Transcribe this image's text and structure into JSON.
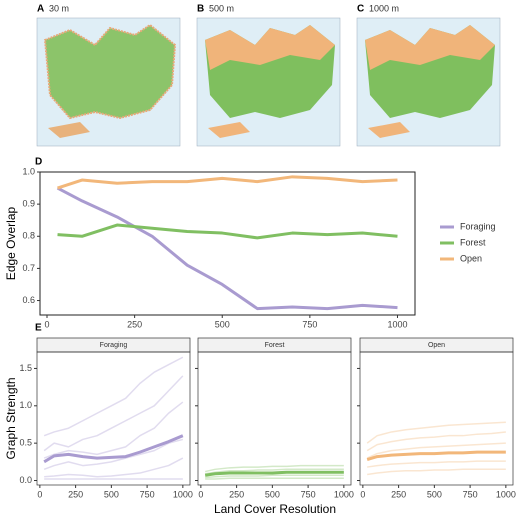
{
  "maps": [
    {
      "letter": "A",
      "label": "30 m"
    },
    {
      "letter": "B",
      "label": "500 m"
    },
    {
      "letter": "C",
      "label": "1000 m"
    }
  ],
  "chart_data": [
    {
      "type": "line",
      "panel": "D",
      "ylabel": "Edge Overlap",
      "x": [
        30,
        100,
        200,
        300,
        400,
        500,
        600,
        700,
        800,
        900,
        1000
      ],
      "series": [
        {
          "name": "Foraging",
          "color": "#a99bd0",
          "values": [
            0.95,
            0.91,
            0.86,
            0.8,
            0.71,
            0.65,
            0.575,
            0.58,
            0.575,
            0.585,
            0.578
          ]
        },
        {
          "name": "Forest",
          "color": "#80bf62",
          "values": [
            0.805,
            0.8,
            0.835,
            0.825,
            0.815,
            0.81,
            0.795,
            0.81,
            0.805,
            0.81,
            0.8
          ]
        },
        {
          "name": "Open",
          "color": "#f2b77a",
          "values": [
            0.95,
            0.975,
            0.965,
            0.97,
            0.97,
            0.98,
            0.97,
            0.985,
            0.98,
            0.97,
            0.975
          ]
        }
      ],
      "xlim": [
        -20,
        1050
      ],
      "ylim": [
        0.555,
        1.0
      ],
      "xticks": [
        0,
        250,
        500,
        750,
        1000
      ],
      "yticks": [
        0.6,
        0.7,
        0.8,
        0.9,
        {
          "value": 1.0,
          "label": "1.0"
        }
      ],
      "legend": "right"
    },
    {
      "type": "facet-line",
      "panel": "E",
      "ylabel": "Graph Strength",
      "xlabel": "Land Cover Resolution",
      "x": [
        30,
        100,
        200,
        300,
        400,
        500,
        600,
        700,
        800,
        900,
        1000
      ],
      "xlim": [
        -20,
        1050
      ],
      "ylim": [
        -0.06,
        1.72
      ],
      "xticks": [
        0,
        250,
        500,
        750,
        1000
      ],
      "yticks": [
        {
          "value": 0,
          "label": "0.0"
        },
        0.5,
        {
          "value": 1,
          "label": "1.0"
        },
        1.5
      ],
      "facets": [
        {
          "title": "Foraging",
          "color": "#a99bd0",
          "mean": [
            0.25,
            0.33,
            0.35,
            0.32,
            0.3,
            0.31,
            0.32,
            0.38,
            0.45,
            0.52,
            0.6
          ],
          "lines": [
            [
              0.6,
              0.65,
              0.7,
              0.8,
              0.9,
              1.0,
              1.1,
              1.3,
              1.45,
              1.55,
              1.65
            ],
            [
              0.4,
              0.5,
              0.45,
              0.55,
              0.6,
              0.7,
              0.8,
              0.9,
              1.0,
              1.2,
              1.4
            ],
            [
              0.3,
              0.35,
              0.4,
              0.38,
              0.35,
              0.4,
              0.45,
              0.6,
              0.7,
              0.9,
              1.05
            ],
            [
              0.15,
              0.2,
              0.25,
              0.2,
              0.22,
              0.25,
              0.3,
              0.35,
              0.4,
              0.5,
              0.55
            ],
            [
              0.05,
              0.06,
              0.08,
              0.07,
              0.05,
              0.06,
              0.08,
              0.1,
              0.15,
              0.2,
              0.3
            ],
            [
              0.02,
              0.02,
              0.02,
              0.02,
              0.02,
              0.02,
              0.02,
              0.02,
              0.02,
              0.02,
              0.02
            ]
          ]
        },
        {
          "title": "Forest",
          "color": "#80bf62",
          "mean": [
            0.07,
            0.09,
            0.1,
            0.1,
            0.1,
            0.1,
            0.11,
            0.11,
            0.11,
            0.11,
            0.11
          ],
          "lines": [
            [
              0.12,
              0.15,
              0.17,
              0.18,
              0.18,
              0.19,
              0.19,
              0.2,
              0.2,
              0.2,
              0.2
            ],
            [
              0.04,
              0.05,
              0.06,
              0.06,
              0.06,
              0.07,
              0.07,
              0.07,
              0.07,
              0.07,
              0.07
            ],
            [
              0.09,
              0.11,
              0.13,
              0.13,
              0.14,
              0.14,
              0.15,
              0.15,
              0.15,
              0.15,
              0.15
            ],
            [
              0.02,
              0.02,
              0.03,
              0.03,
              0.03,
              0.03,
              0.03,
              0.03,
              0.03,
              0.03,
              0.03
            ]
          ]
        },
        {
          "title": "Open",
          "color": "#f2b77a",
          "mean": [
            0.28,
            0.32,
            0.34,
            0.35,
            0.36,
            0.36,
            0.37,
            0.37,
            0.38,
            0.38,
            0.38
          ],
          "lines": [
            [
              0.5,
              0.6,
              0.65,
              0.68,
              0.7,
              0.72,
              0.74,
              0.75,
              0.76,
              0.77,
              0.78
            ],
            [
              0.4,
              0.48,
              0.52,
              0.55,
              0.57,
              0.58,
              0.6,
              0.6,
              0.62,
              0.63,
              0.65
            ],
            [
              0.18,
              0.2,
              0.22,
              0.23,
              0.24,
              0.24,
              0.25,
              0.25,
              0.26,
              0.26,
              0.26
            ],
            [
              0.08,
              0.1,
              0.12,
              0.13,
              0.13,
              0.14,
              0.14,
              0.15,
              0.15,
              0.15,
              0.15
            ],
            [
              0.3,
              0.36,
              0.4,
              0.42,
              0.44,
              0.45,
              0.46,
              0.47,
              0.48,
              0.49,
              0.5
            ]
          ]
        }
      ]
    }
  ]
}
